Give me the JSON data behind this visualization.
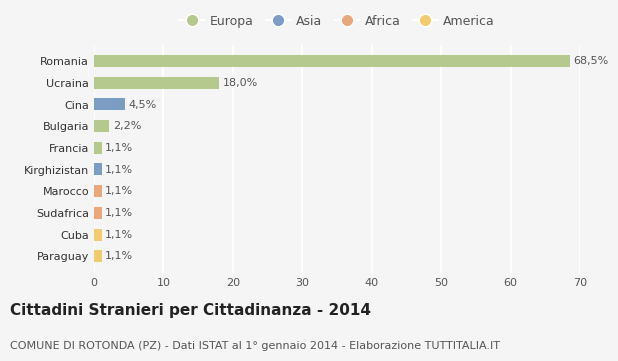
{
  "countries": [
    "Romania",
    "Ucraina",
    "Cina",
    "Bulgaria",
    "Francia",
    "Kirghizistan",
    "Marocco",
    "Sudafrica",
    "Cuba",
    "Paraguay"
  ],
  "values": [
    68.5,
    18.0,
    4.5,
    2.2,
    1.1,
    1.1,
    1.1,
    1.1,
    1.1,
    1.1
  ],
  "labels": [
    "68,5%",
    "18,0%",
    "4,5%",
    "2,2%",
    "1,1%",
    "1,1%",
    "1,1%",
    "1,1%",
    "1,1%",
    "1,1%"
  ],
  "continents": [
    "Europa",
    "Europa",
    "Asia",
    "Europa",
    "Europa",
    "Asia",
    "Africa",
    "Africa",
    "America",
    "America"
  ],
  "colors": {
    "Europa": "#b5c98e",
    "Asia": "#7b9dc4",
    "Africa": "#e8a87c",
    "America": "#f0cc6e"
  },
  "legend_order": [
    "Europa",
    "Asia",
    "Africa",
    "America"
  ],
  "title": "Cittadini Stranieri per Cittadinanza - 2014",
  "subtitle": "COMUNE DI ROTONDA (PZ) - Dati ISTAT al 1° gennaio 2014 - Elaborazione TUTTITALIA.IT",
  "xlim": [
    0,
    70
  ],
  "xticks": [
    0,
    10,
    20,
    30,
    40,
    50,
    60,
    70
  ],
  "background_color": "#f5f5f5",
  "grid_color": "#ffffff",
  "title_fontsize": 11,
  "subtitle_fontsize": 8,
  "label_fontsize": 8,
  "tick_fontsize": 8,
  "legend_fontsize": 9
}
